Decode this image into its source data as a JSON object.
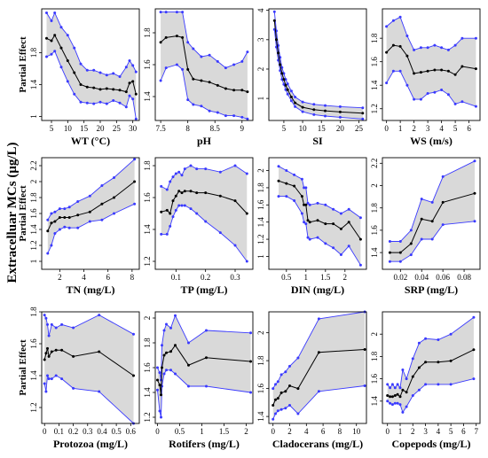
{
  "global_ylabel": "Extracelluar MCs (μg/L)",
  "panel_ylabel": "Partial Effect",
  "chart_data": [
    {
      "type": "line",
      "xlabel": "WT (°C)",
      "xlim": [
        2,
        32
      ],
      "ylim": [
        0.95,
        2.35
      ],
      "xticks": [
        5,
        10,
        15,
        20,
        25,
        30
      ],
      "yticks": [
        1.0,
        1.4,
        1.8
      ],
      "x": [
        3.5,
        5,
        6,
        8,
        10,
        12,
        14,
        16,
        18,
        20,
        22,
        24,
        26,
        28,
        29,
        30,
        31
      ],
      "fit": [
        1.98,
        1.95,
        2.02,
        1.86,
        1.7,
        1.55,
        1.4,
        1.37,
        1.36,
        1.34,
        1.35,
        1.34,
        1.33,
        1.31,
        1.42,
        1.44,
        1.28
      ],
      "lower": [
        1.75,
        1.78,
        1.82,
        1.62,
        1.44,
        1.28,
        1.18,
        1.17,
        1.16,
        1.18,
        1.16,
        1.2,
        1.17,
        1.12,
        1.26,
        1.22,
        0.97
      ],
      "upper": [
        2.3,
        2.2,
        2.3,
        2.12,
        2.02,
        1.86,
        1.66,
        1.58,
        1.58,
        1.55,
        1.52,
        1.54,
        1.5,
        1.62,
        1.7,
        1.64,
        1.56
      ]
    },
    {
      "type": "line",
      "xlabel": "pH",
      "xlim": [
        7.4,
        9.2
      ],
      "ylim": [
        1.25,
        1.95
      ],
      "xticks": [
        7.5,
        8.0,
        8.5,
        9.0
      ],
      "yticks": [
        1.4,
        1.6,
        1.8
      ],
      "x": [
        7.5,
        7.6,
        7.8,
        7.9,
        8.0,
        8.1,
        8.25,
        8.4,
        8.55,
        8.7,
        8.85,
        9.0,
        9.1
      ],
      "fit": [
        1.74,
        1.77,
        1.78,
        1.77,
        1.57,
        1.51,
        1.5,
        1.49,
        1.47,
        1.45,
        1.44,
        1.44,
        1.43
      ],
      "lower": [
        1.5,
        1.58,
        1.6,
        1.57,
        1.38,
        1.35,
        1.34,
        1.31,
        1.3,
        1.28,
        1.28,
        1.27,
        1.26
      ],
      "upper": [
        1.93,
        1.93,
        1.93,
        1.93,
        1.74,
        1.7,
        1.65,
        1.66,
        1.62,
        1.58,
        1.6,
        1.62,
        1.68
      ]
    },
    {
      "type": "line",
      "xlabel": "SI",
      "xlim": [
        1,
        27
      ],
      "ylim": [
        0.25,
        4.05
      ],
      "xticks": [
        5,
        10,
        15,
        20,
        25
      ],
      "yticks": [
        1,
        2,
        3,
        4
      ],
      "x": [
        2.5,
        3,
        3.5,
        4,
        4.5,
        5,
        5.5,
        6,
        7,
        8,
        10,
        13,
        16,
        20,
        26
      ],
      "fit": [
        3.65,
        3.0,
        2.55,
        2.15,
        1.85,
        1.65,
        1.45,
        1.3,
        1.05,
        0.85,
        0.7,
        0.62,
        0.58,
        0.54,
        0.5
      ],
      "lower": [
        3.35,
        2.75,
        2.3,
        1.95,
        1.65,
        1.48,
        1.3,
        1.15,
        0.92,
        0.72,
        0.55,
        0.45,
        0.4,
        0.36,
        0.3
      ],
      "upper": [
        3.95,
        3.3,
        2.8,
        2.4,
        2.05,
        1.85,
        1.65,
        1.5,
        1.25,
        1.05,
        0.88,
        0.8,
        0.76,
        0.72,
        0.68
      ]
    },
    {
      "type": "line",
      "xlabel": "WS (m/s)",
      "xlim": [
        -0.3,
        6.8
      ],
      "ylim": [
        1.1,
        2.05
      ],
      "xticks": [
        0,
        1,
        2,
        3,
        4,
        5,
        6
      ],
      "yticks": [
        1.2,
        1.4,
        1.6,
        1.8
      ],
      "x": [
        0,
        0.5,
        1,
        1.5,
        2,
        2.5,
        3,
        3.5,
        4,
        4.5,
        5,
        5.5,
        6.5
      ],
      "fit": [
        1.68,
        1.74,
        1.73,
        1.65,
        1.5,
        1.51,
        1.52,
        1.53,
        1.53,
        1.52,
        1.49,
        1.56,
        1.54
      ],
      "lower": [
        1.42,
        1.52,
        1.52,
        1.4,
        1.28,
        1.28,
        1.33,
        1.34,
        1.36,
        1.32,
        1.24,
        1.26,
        1.22
      ],
      "upper": [
        1.9,
        1.95,
        1.98,
        1.82,
        1.7,
        1.72,
        1.72,
        1.74,
        1.72,
        1.7,
        1.74,
        1.8,
        1.8
      ]
    },
    {
      "type": "line",
      "xlabel": "TN (mg/L)",
      "xlim": [
        0.5,
        8.6
      ],
      "ylim": [
        0.9,
        2.3
      ],
      "xticks": [
        2,
        4,
        6,
        8
      ],
      "yticks": [
        1.0,
        1.2,
        1.4,
        1.6,
        1.8,
        2.0,
        2.2
      ],
      "x": [
        1,
        1.3,
        1.6,
        2,
        2.4,
        2.8,
        3.5,
        4.5,
        5.5,
        6.5,
        8.2
      ],
      "fit": [
        1.38,
        1.48,
        1.5,
        1.55,
        1.55,
        1.55,
        1.58,
        1.62,
        1.72,
        1.8,
        2.0
      ],
      "lower": [
        1.1,
        1.2,
        1.35,
        1.4,
        1.43,
        1.42,
        1.42,
        1.5,
        1.52,
        1.6,
        1.72
      ],
      "upper": [
        1.52,
        1.6,
        1.62,
        1.66,
        1.66,
        1.68,
        1.75,
        1.82,
        1.95,
        2.05,
        2.28
      ]
    },
    {
      "type": "line",
      "xlabel": "TP (mg/L)",
      "xlim": [
        0.03,
        0.36
      ],
      "ylim": [
        1.15,
        1.85
      ],
      "xticks": [
        0.1,
        0.2,
        0.3
      ],
      "yticks": [
        1.2,
        1.4,
        1.6,
        1.8
      ],
      "x": [
        0.05,
        0.07,
        0.08,
        0.09,
        0.1,
        0.11,
        0.12,
        0.13,
        0.15,
        0.17,
        0.2,
        0.25,
        0.3,
        0.34
      ],
      "fit": [
        1.51,
        1.52,
        1.5,
        1.58,
        1.61,
        1.64,
        1.63,
        1.64,
        1.64,
        1.63,
        1.63,
        1.61,
        1.58,
        1.5
      ],
      "lower": [
        1.37,
        1.37,
        1.42,
        1.48,
        1.52,
        1.55,
        1.55,
        1.55,
        1.53,
        1.5,
        1.45,
        1.38,
        1.3,
        1.2
      ],
      "upper": [
        1.67,
        1.65,
        1.7,
        1.73,
        1.75,
        1.76,
        1.74,
        1.78,
        1.8,
        1.78,
        1.78,
        1.76,
        1.8,
        1.75
      ]
    },
    {
      "type": "line",
      "xlabel": "DIN (mg/L)",
      "xlim": [
        0.05,
        2.55
      ],
      "ylim": [
        0.85,
        2.15
      ],
      "xticks": [
        0.5,
        1.0,
        1.5,
        2.0
      ],
      "yticks": [
        1.0,
        1.2,
        1.4,
        1.6,
        1.8,
        2.0
      ],
      "x": [
        0.3,
        0.5,
        0.7,
        0.9,
        0.95,
        1.0,
        1.05,
        1.1,
        1.3,
        1.5,
        1.7,
        1.9,
        2.1,
        2.4
      ],
      "fit": [
        1.88,
        1.85,
        1.82,
        1.7,
        1.6,
        1.6,
        1.42,
        1.4,
        1.42,
        1.38,
        1.38,
        1.32,
        1.4,
        1.2
      ],
      "lower": [
        1.7,
        1.7,
        1.65,
        1.5,
        1.4,
        1.38,
        1.22,
        1.2,
        1.22,
        1.15,
        1.1,
        1.02,
        1.12,
        0.9
      ],
      "upper": [
        2.05,
        2.0,
        1.95,
        1.9,
        1.8,
        1.8,
        1.62,
        1.6,
        1.62,
        1.6,
        1.55,
        1.5,
        1.55,
        1.45
      ]
    },
    {
      "type": "line",
      "xlabel": "SRP (mg/L)",
      "xlim": [
        0.003,
        0.095
      ],
      "ylim": [
        1.25,
        2.25
      ],
      "xticks": [
        0.02,
        0.04,
        0.06,
        0.08
      ],
      "yticks": [
        1.4,
        1.6,
        1.8,
        2.0,
        2.2
      ],
      "x": [
        0.01,
        0.02,
        0.03,
        0.04,
        0.05,
        0.06,
        0.09
      ],
      "fit": [
        1.4,
        1.4,
        1.48,
        1.7,
        1.68,
        1.85,
        1.93
      ],
      "lower": [
        1.32,
        1.32,
        1.38,
        1.52,
        1.52,
        1.65,
        1.68
      ],
      "upper": [
        1.5,
        1.5,
        1.6,
        1.88,
        1.85,
        2.08,
        2.22
      ]
    },
    {
      "type": "line",
      "xlabel": "Protozoa (mg/L)",
      "xlim": [
        -0.02,
        0.66
      ],
      "ylim": [
        1.1,
        1.8
      ],
      "xticks": [
        0.0,
        0.1,
        0.2,
        0.3,
        0.4,
        0.5,
        0.6
      ],
      "yticks": [
        1.2,
        1.4,
        1.6,
        1.8
      ],
      "x": [
        0,
        0.01,
        0.02,
        0.03,
        0.05,
        0.08,
        0.12,
        0.2,
        0.38,
        0.62
      ],
      "fit": [
        1.5,
        1.54,
        1.57,
        1.52,
        1.55,
        1.56,
        1.56,
        1.52,
        1.55,
        1.4
      ],
      "lower": [
        1.35,
        1.3,
        1.4,
        1.38,
        1.38,
        1.4,
        1.38,
        1.32,
        1.3,
        1.1
      ],
      "upper": [
        1.78,
        1.76,
        1.72,
        1.65,
        1.72,
        1.7,
        1.72,
        1.7,
        1.78,
        1.66
      ]
    },
    {
      "type": "line",
      "xlabel": "Rotifers (mg/L)",
      "xlim": [
        -0.05,
        2.15
      ],
      "ylim": [
        1.15,
        2.05
      ],
      "xticks": [
        0.0,
        0.5,
        1.0,
        1.5,
        2.0
      ],
      "yticks": [
        1.2,
        1.4,
        1.6,
        1.8,
        2.0
      ],
      "x": [
        0,
        0.05,
        0.08,
        0.1,
        0.15,
        0.2,
        0.3,
        0.4,
        0.7,
        1.1,
        2.1
      ],
      "fit": [
        1.5,
        1.46,
        1.38,
        1.6,
        1.7,
        1.72,
        1.73,
        1.78,
        1.62,
        1.68,
        1.65
      ],
      "lower": [
        1.42,
        1.25,
        1.2,
        1.45,
        1.55,
        1.58,
        1.58,
        1.55,
        1.45,
        1.45,
        1.4
      ],
      "upper": [
        1.6,
        1.56,
        1.5,
        1.78,
        1.9,
        1.95,
        1.92,
        2.02,
        1.8,
        1.9,
        1.88
      ]
    },
    {
      "type": "line",
      "xlabel": "Cladocerans (mg/L)",
      "xlim": [
        -0.5,
        11.2
      ],
      "ylim": [
        1.35,
        2.15
      ],
      "xticks": [
        0,
        2,
        4,
        6,
        8,
        10
      ],
      "yticks": [
        1.4,
        1.6,
        1.8,
        2.0
      ],
      "x": [
        0,
        0.3,
        0.6,
        1,
        1.5,
        2,
        3,
        5.5,
        11
      ],
      "fit": [
        1.48,
        1.52,
        1.53,
        1.57,
        1.58,
        1.62,
        1.6,
        1.86,
        1.88
      ],
      "lower": [
        1.38,
        1.42,
        1.44,
        1.45,
        1.46,
        1.48,
        1.42,
        1.58,
        1.62
      ],
      "upper": [
        1.6,
        1.63,
        1.65,
        1.7,
        1.72,
        1.76,
        1.82,
        2.1,
        2.15
      ]
    },
    {
      "type": "line",
      "xlabel": "Copepods (mg/L)",
      "xlim": [
        -0.4,
        7.3
      ],
      "ylim": [
        1.2,
        2.2
      ],
      "xticks": [
        0,
        1,
        2,
        3,
        4,
        5,
        6,
        7
      ],
      "yticks": [
        1.4,
        1.6,
        1.8,
        2.0
      ],
      "x": [
        0,
        0.2,
        0.4,
        0.6,
        0.8,
        1,
        1.2,
        1.5,
        2,
        2.5,
        3,
        4,
        5,
        6.8
      ],
      "fit": [
        1.45,
        1.44,
        1.44,
        1.45,
        1.46,
        1.44,
        1.5,
        1.48,
        1.62,
        1.7,
        1.75,
        1.75,
        1.76,
        1.86
      ],
      "lower": [
        1.4,
        1.38,
        1.37,
        1.38,
        1.38,
        1.37,
        1.3,
        1.35,
        1.45,
        1.5,
        1.55,
        1.55,
        1.55,
        1.6
      ],
      "upper": [
        1.55,
        1.52,
        1.55,
        1.52,
        1.55,
        1.52,
        1.68,
        1.6,
        1.78,
        1.92,
        1.96,
        1.95,
        2.0,
        2.15
      ]
    }
  ]
}
